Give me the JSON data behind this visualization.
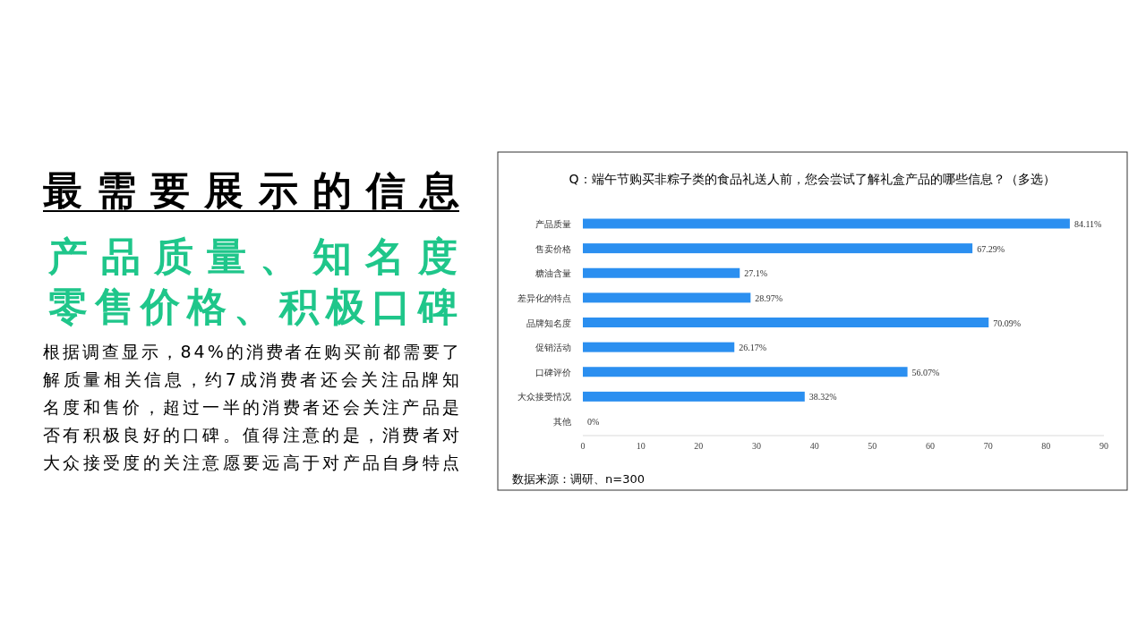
{
  "chart_data": {
    "type": "bar",
    "orientation": "horizontal",
    "title": "Q：端午节购买非粽子类的食品礼送人前，您会尝试了解礼盒产品的哪些信息？（多选）",
    "categories": [
      "产品质量",
      "售卖价格",
      "糖油含量",
      "差异化的特点",
      "品牌知名度",
      "促销活动",
      "口碑评价",
      "大众接受情况",
      "其他"
    ],
    "values": [
      84.11,
      67.29,
      27.1,
      28.97,
      70.09,
      26.17,
      56.07,
      38.32,
      0
    ],
    "value_labels": [
      "84.11%",
      "67.29%",
      "27.1%",
      "28.97%",
      "70.09%",
      "26.17%",
      "56.07%",
      "38.32%",
      "0%"
    ],
    "color": "#2b8ff0",
    "xlim": [
      0,
      90
    ],
    "xticks": [
      0,
      10,
      20,
      30,
      40,
      50,
      60,
      70,
      80,
      90
    ],
    "grid": false,
    "annotations": [
      "最需要展示的信息",
      "产品质量、知名度",
      "零售价格、积极口碑",
      "根据调查显示，84%的消费者在购买前都需要了解质量相关信息，约7成消费者还会关注品牌知名度和售价，超过一半的消费者还会关注产品是否有积极良好的口碑。值得注意的是，消费者对大众接受度的关注意愿要远高于对产品自身特点",
      "数据来源：调研、n=300"
    ]
  }
}
